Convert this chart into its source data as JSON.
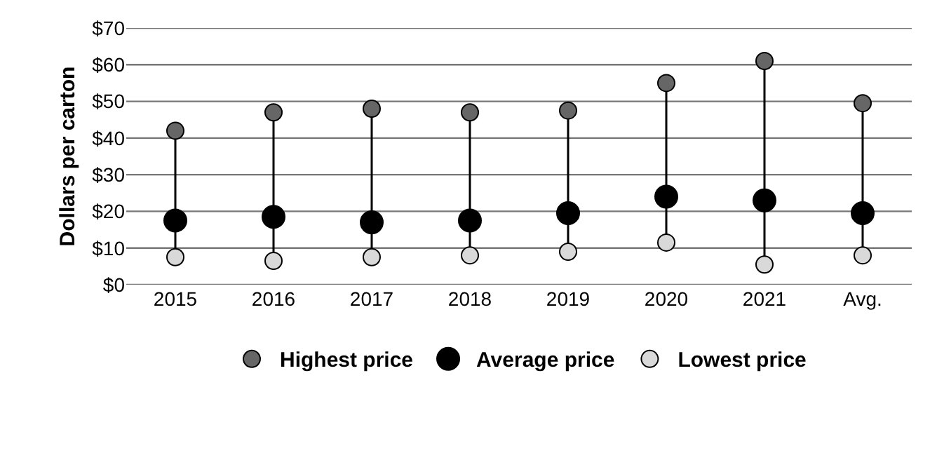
{
  "chart_data": {
    "type": "scatter",
    "ylabel": "Dollars per carton",
    "categories": [
      "2015",
      "2016",
      "2017",
      "2018",
      "2019",
      "2020",
      "2021",
      "Avg."
    ],
    "series": [
      {
        "name": "Highest price",
        "color": "#666666",
        "values": [
          42,
          47,
          48,
          47,
          47.5,
          55,
          61,
          49.5
        ]
      },
      {
        "name": "Average price",
        "color": "#000000",
        "values": [
          17.5,
          18.5,
          17,
          17.5,
          19.5,
          24,
          23,
          19.5
        ]
      },
      {
        "name": "Lowest price",
        "color": "#d9d9d9",
        "values": [
          7.5,
          6.5,
          7.5,
          8,
          9,
          11.5,
          5.5,
          8
        ]
      }
    ],
    "ylim": [
      0,
      70
    ],
    "yticks": [
      {
        "value": 0,
        "label": "$0"
      },
      {
        "value": 10,
        "label": "$10"
      },
      {
        "value": 20,
        "label": "$20"
      },
      {
        "value": 30,
        "label": "$30"
      },
      {
        "value": 40,
        "label": "$40"
      },
      {
        "value": 50,
        "label": "$50"
      },
      {
        "value": 60,
        "label": "$60"
      },
      {
        "value": 70,
        "label": "$70"
      }
    ],
    "grid": "y",
    "legend": "bottom",
    "marker": "circle"
  }
}
